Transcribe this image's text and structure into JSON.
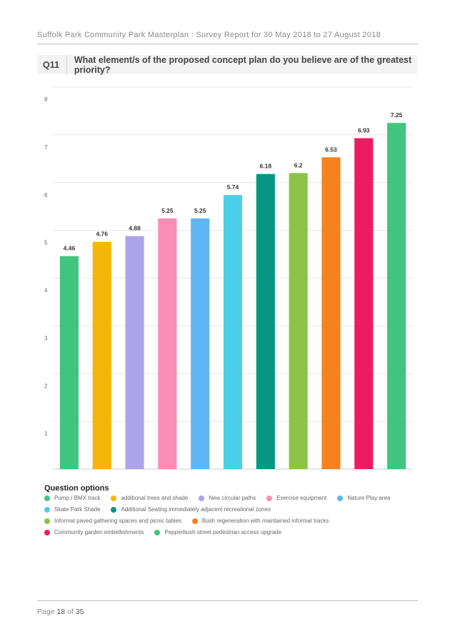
{
  "header": {
    "text": "Suffolk Park Community Park Masterplan : Survey Report for 30 May 2018 to 27 August 2018"
  },
  "question": {
    "number": "Q11",
    "text": "What element/s of the proposed concept plan do you believe are of the greatest priority?"
  },
  "chart_data": {
    "type": "bar",
    "title": "",
    "xlabel": "",
    "ylabel": "",
    "ylim": [
      0,
      8
    ],
    "yticks": [
      "1",
      "2",
      "3",
      "4",
      "5",
      "6",
      "7",
      "8"
    ],
    "grid": true,
    "legend_position": "bottom",
    "categories": [
      "Pump / BMX track",
      "additional trees and shade",
      "New circular paths",
      "Exercise equipment",
      "Nature Play area",
      "Skate Park Shade",
      "Additional Seating immediately adjacent recreational zones",
      "Informal paved gathering spaces and picnic tables",
      "Bush regeneration with maintained informal tracks",
      "Community garden embellishments",
      "Pepperbush street pedestrian access upgrade"
    ],
    "values": [
      4.46,
      4.76,
      4.88,
      5.25,
      5.25,
      5.74,
      6.18,
      6.2,
      6.53,
      6.93,
      7.25
    ],
    "value_labels": [
      "4.46",
      "4.76",
      "4.88",
      "5.25",
      "5.25",
      "5.74",
      "6.18",
      "6.2",
      "6.53",
      "6.93",
      "7.25"
    ],
    "colors": [
      "#40c580",
      "#f5b60a",
      "#aca3e8",
      "#f88eb4",
      "#62b5f5",
      "#4bcfe8",
      "#039784",
      "#8bc34a",
      "#f5821f",
      "#ec1c63",
      "#40c580"
    ]
  },
  "legend": {
    "title": "Question options",
    "rows": [
      [
        {
          "label": "Pump / BMX track",
          "color": "#40c580"
        },
        {
          "label": "additional trees and shade",
          "color": "#f5b60a"
        },
        {
          "label": "New circular paths",
          "color": "#aca3e8"
        },
        {
          "label": "Exercise equipment",
          "color": "#f88eb4"
        },
        {
          "label": "Nature Play area",
          "color": "#62b5f5"
        }
      ],
      [
        {
          "label": "Skate Park Shade",
          "color": "#4bcfe8"
        },
        {
          "label": "Additional Seating immediately adjacent recreational zones",
          "color": "#039784"
        }
      ],
      [
        {
          "label": "Informal paved gathering spaces and picnic tables",
          "color": "#8bc34a"
        },
        {
          "label": "Bush regeneration with maintained informal tracks",
          "color": "#f5821f"
        }
      ],
      [
        {
          "label": "Community garden embellishments",
          "color": "#ec1c63"
        },
        {
          "label": "Pepperbush street pedestrian access upgrade",
          "color": "#40c580"
        }
      ]
    ]
  },
  "footer": {
    "prefix": "Page",
    "page": "18",
    "of": "of",
    "total": "35"
  }
}
